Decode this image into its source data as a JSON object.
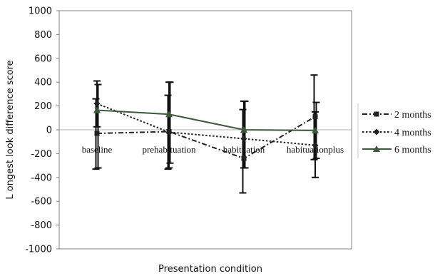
{
  "chart_data": {
    "type": "line",
    "xlabel": "Presentation condition",
    "ylabel": "L ongest look difference score",
    "ylim": [
      -1000,
      1000
    ],
    "yticks": [
      1000,
      800,
      600,
      400,
      200,
      0,
      -200,
      -400,
      -600,
      -800,
      -1000
    ],
    "categories": [
      "baseline",
      "prehabituation",
      "habituation",
      "habituationplus"
    ],
    "grid": false,
    "legend_position": "right",
    "series": [
      {
        "name": "2 months",
        "values": [
          -30,
          -15,
          -240,
          110
        ],
        "error_low": [
          -330,
          -330,
          -530,
          -250
        ],
        "error_high": [
          260,
          290,
          170,
          460
        ],
        "line_style": "dash-dot",
        "marker": "square",
        "color": "#222222"
      },
      {
        "name": "4 months",
        "values": [
          220,
          -20,
          -75,
          -130
        ],
        "error_low": [
          25,
          -320,
          -320,
          -400
        ],
        "error_high": [
          410,
          400,
          240,
          150
        ],
        "line_style": "dotted",
        "marker": "diamond",
        "color": "#222222"
      },
      {
        "name": "6 months",
        "values": [
          165,
          130,
          0,
          -5
        ],
        "error_low": [
          -320,
          -280,
          -320,
          -240
        ],
        "error_high": [
          380,
          400,
          240,
          230
        ],
        "line_style": "solid",
        "marker": "triangle",
        "color": "#3a5a3a"
      }
    ]
  }
}
